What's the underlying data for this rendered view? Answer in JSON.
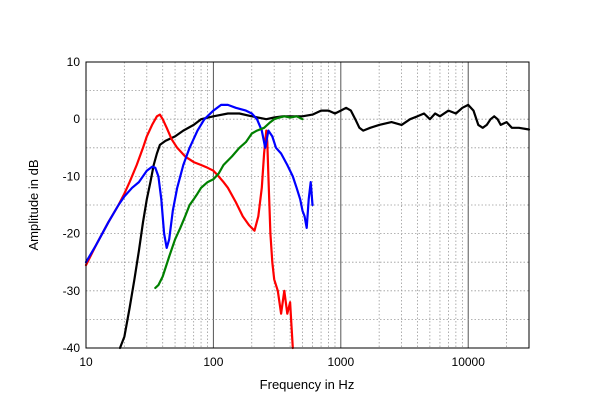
{
  "chart_data": {
    "type": "line",
    "title": "",
    "xlabel": "Frequency in Hz",
    "ylabel": "Amplitude in dB",
    "xscale": "log",
    "xlim": [
      10,
      30000
    ],
    "ylim": [
      -40,
      10
    ],
    "grid": true,
    "legend": "none",
    "xtick_labels": [
      "10",
      "100",
      "1000",
      "10000"
    ],
    "xtick_values": [
      10,
      100,
      1000,
      10000
    ],
    "ytick_labels": [
      "10",
      "0",
      "-10",
      "-20",
      "-30",
      "-40"
    ],
    "ytick_values": [
      10,
      0,
      -10,
      -20,
      -30,
      -40
    ],
    "series": [
      {
        "color": "#000000",
        "points": [
          [
            18.5,
            -40
          ],
          [
            20,
            -38
          ],
          [
            22,
            -33
          ],
          [
            24,
            -28
          ],
          [
            26,
            -23
          ],
          [
            28,
            -18
          ],
          [
            30,
            -14
          ],
          [
            32,
            -11
          ],
          [
            34,
            -8
          ],
          [
            36,
            -6
          ],
          [
            38,
            -4.5
          ],
          [
            42,
            -3.8
          ],
          [
            50,
            -3
          ],
          [
            58,
            -2
          ],
          [
            70,
            -1
          ],
          [
            80,
            0
          ],
          [
            100,
            0.5
          ],
          [
            130,
            1
          ],
          [
            160,
            1
          ],
          [
            200,
            0.5
          ],
          [
            260,
            0
          ],
          [
            300,
            0.3
          ],
          [
            350,
            0.5
          ],
          [
            400,
            0.5
          ],
          [
            500,
            0.5
          ],
          [
            600,
            0.8
          ],
          [
            700,
            1.5
          ],
          [
            800,
            1.5
          ],
          [
            900,
            1
          ],
          [
            1000,
            1.5
          ],
          [
            1100,
            2
          ],
          [
            1200,
            1.5
          ],
          [
            1300,
            0
          ],
          [
            1400,
            -1.5
          ],
          [
            1500,
            -2
          ],
          [
            1700,
            -1.5
          ],
          [
            2000,
            -1
          ],
          [
            2500,
            -0.5
          ],
          [
            3000,
            -1
          ],
          [
            3500,
            0
          ],
          [
            4000,
            0.5
          ],
          [
            4500,
            1
          ],
          [
            5000,
            0
          ],
          [
            5500,
            1
          ],
          [
            6000,
            0.5
          ],
          [
            7000,
            1.5
          ],
          [
            8000,
            1
          ],
          [
            9000,
            2
          ],
          [
            10000,
            2.5
          ],
          [
            11000,
            1.5
          ],
          [
            12000,
            -1
          ],
          [
            13000,
            -1.5
          ],
          [
            14000,
            -1
          ],
          [
            15000,
            0
          ],
          [
            16000,
            0.5
          ],
          [
            17000,
            0
          ],
          [
            18000,
            -1
          ],
          [
            20000,
            -0.5
          ],
          [
            22000,
            -1.5
          ],
          [
            25000,
            -1.5
          ],
          [
            30000,
            -1.8
          ]
        ]
      },
      {
        "color": "#ff0000",
        "points": [
          [
            10,
            -25.5
          ],
          [
            12,
            -22
          ],
          [
            15,
            -18
          ],
          [
            18,
            -15
          ],
          [
            20,
            -13
          ],
          [
            22,
            -11
          ],
          [
            25,
            -8
          ],
          [
            28,
            -5
          ],
          [
            30,
            -3
          ],
          [
            33,
            -1
          ],
          [
            36,
            0.5
          ],
          [
            38,
            0.8
          ],
          [
            40,
            0
          ],
          [
            43,
            -1.5
          ],
          [
            47,
            -3.5
          ],
          [
            52,
            -5
          ],
          [
            60,
            -6.5
          ],
          [
            70,
            -7.5
          ],
          [
            80,
            -8
          ],
          [
            90,
            -8.5
          ],
          [
            100,
            -9
          ],
          [
            110,
            -10
          ],
          [
            120,
            -11
          ],
          [
            130,
            -12
          ],
          [
            150,
            -14.5
          ],
          [
            170,
            -17
          ],
          [
            190,
            -18.5
          ],
          [
            210,
            -19.5
          ],
          [
            225,
            -17
          ],
          [
            240,
            -12
          ],
          [
            250,
            -6
          ],
          [
            260,
            -2
          ],
          [
            265,
            -4
          ],
          [
            270,
            -10
          ],
          [
            280,
            -20
          ],
          [
            290,
            -25
          ],
          [
            300,
            -28
          ],
          [
            320,
            -30
          ],
          [
            340,
            -34
          ],
          [
            360,
            -30
          ],
          [
            380,
            -34
          ],
          [
            400,
            -32
          ],
          [
            420,
            -40
          ]
        ]
      },
      {
        "color": "#0000ff",
        "points": [
          [
            10,
            -25
          ],
          [
            12,
            -22
          ],
          [
            15,
            -18
          ],
          [
            18,
            -15
          ],
          [
            20,
            -13.5
          ],
          [
            23,
            -12
          ],
          [
            26,
            -11
          ],
          [
            30,
            -9
          ],
          [
            33,
            -8.3
          ],
          [
            35,
            -8.5
          ],
          [
            37,
            -10
          ],
          [
            39,
            -14
          ],
          [
            41,
            -20
          ],
          [
            43,
            -22.5
          ],
          [
            45,
            -21
          ],
          [
            48,
            -16
          ],
          [
            52,
            -12
          ],
          [
            58,
            -8
          ],
          [
            65,
            -5
          ],
          [
            75,
            -2
          ],
          [
            85,
            0
          ],
          [
            100,
            1.5
          ],
          [
            115,
            2.5
          ],
          [
            130,
            2.5
          ],
          [
            150,
            2
          ],
          [
            180,
            1.5
          ],
          [
            200,
            1
          ],
          [
            220,
            0
          ],
          [
            240,
            -2
          ],
          [
            250,
            -4
          ],
          [
            255,
            -5
          ],
          [
            260,
            -4
          ],
          [
            270,
            -2
          ],
          [
            290,
            -3
          ],
          [
            310,
            -5
          ],
          [
            340,
            -6
          ],
          [
            380,
            -8
          ],
          [
            420,
            -10
          ],
          [
            450,
            -12
          ],
          [
            480,
            -14
          ],
          [
            500,
            -16
          ],
          [
            520,
            -17
          ],
          [
            540,
            -19
          ],
          [
            560,
            -14
          ],
          [
            580,
            -11
          ],
          [
            600,
            -15
          ]
        ]
      },
      {
        "color": "#008000",
        "points": [
          [
            35,
            -29.5
          ],
          [
            37,
            -29
          ],
          [
            40,
            -27.5
          ],
          [
            45,
            -24
          ],
          [
            50,
            -21
          ],
          [
            55,
            -19
          ],
          [
            60,
            -17
          ],
          [
            65,
            -15
          ],
          [
            70,
            -14
          ],
          [
            75,
            -13
          ],
          [
            80,
            -12
          ],
          [
            90,
            -11
          ],
          [
            100,
            -10.5
          ],
          [
            110,
            -9.5
          ],
          [
            120,
            -8
          ],
          [
            140,
            -6.5
          ],
          [
            160,
            -5
          ],
          [
            180,
            -4
          ],
          [
            200,
            -2.5
          ],
          [
            220,
            -2
          ],
          [
            250,
            -1.5
          ],
          [
            280,
            -0.5
          ],
          [
            300,
            0
          ],
          [
            330,
            0.3
          ],
          [
            360,
            0.5
          ],
          [
            400,
            0.3
          ],
          [
            450,
            0.5
          ],
          [
            500,
            0
          ]
        ]
      }
    ]
  }
}
